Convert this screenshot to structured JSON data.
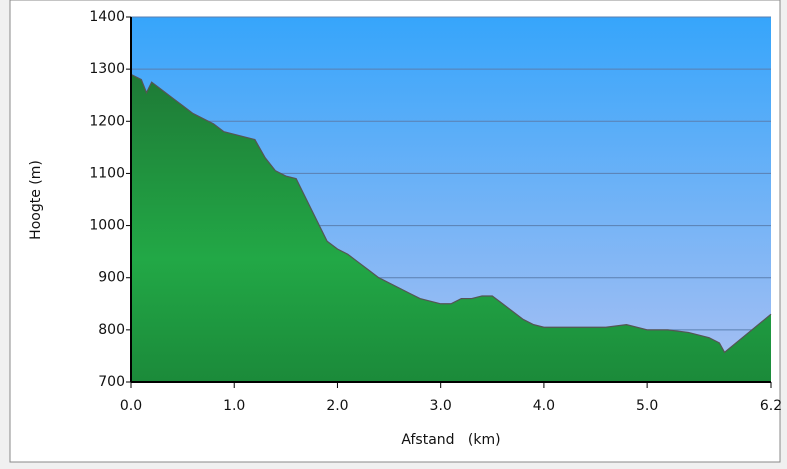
{
  "chart_data": {
    "type": "area",
    "xlabel": "Afstand   (km)",
    "ylabel": "Hoogte (m)",
    "x": [
      0,
      0.1,
      0.15,
      0.2,
      0.3,
      0.4,
      0.5,
      0.6,
      0.7,
      0.8,
      0.9,
      1.0,
      1.1,
      1.2,
      1.3,
      1.4,
      1.5,
      1.6,
      1.7,
      1.8,
      1.9,
      2.0,
      2.1,
      2.2,
      2.3,
      2.4,
      2.5,
      2.6,
      2.7,
      2.8,
      2.9,
      3.0,
      3.1,
      3.2,
      3.3,
      3.4,
      3.5,
      3.6,
      3.7,
      3.8,
      3.9,
      4.0,
      4.2,
      4.4,
      4.6,
      4.8,
      5.0,
      5.2,
      5.4,
      5.6,
      5.7,
      5.75,
      6.2
    ],
    "values": [
      1290,
      1280,
      1255,
      1275,
      1260,
      1245,
      1230,
      1215,
      1205,
      1195,
      1180,
      1175,
      1170,
      1165,
      1130,
      1105,
      1095,
      1090,
      1050,
      1010,
      970,
      955,
      945,
      930,
      915,
      900,
      890,
      880,
      870,
      860,
      855,
      850,
      850,
      860,
      860,
      865,
      865,
      850,
      835,
      820,
      810,
      805,
      805,
      805,
      805,
      810,
      800,
      800,
      795,
      785,
      775,
      757,
      830
    ],
    "color": "#22a846",
    "xlim": [
      0,
      6.2
    ],
    "xticks": [
      {
        "value": 0,
        "label": "0.0"
      },
      {
        "value": 1,
        "label": "1.0"
      },
      {
        "value": 2,
        "label": "2.0"
      },
      {
        "value": 3,
        "label": "3.0"
      },
      {
        "value": 4,
        "label": "4.0"
      },
      {
        "value": 5,
        "label": "5.0"
      },
      6.2
    ],
    "ylim": [
      700,
      1400
    ],
    "yticks": [
      700,
      800,
      900,
      1000,
      1100,
      1200,
      1300,
      1400
    ],
    "grid": true
  }
}
